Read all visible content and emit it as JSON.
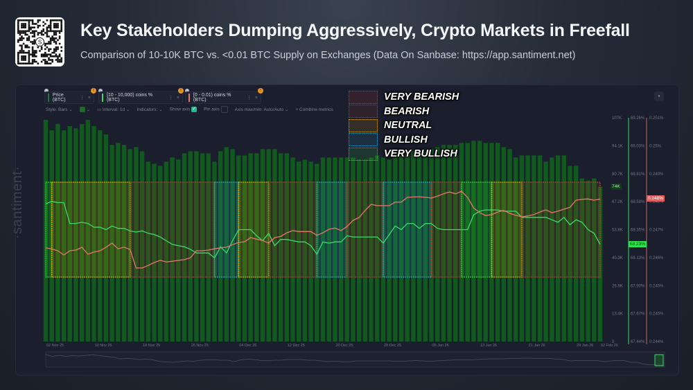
{
  "header": {
    "title": "Key Stakeholders Dumping Aggressively, Crypto Markets in Freefall",
    "subtitle": "Comparison of 10-10K BTC vs. <0.01 BTC Supply on Exchanges (Data On Sanbase: https://app.santiment.net)",
    "qr_logo_text": "S"
  },
  "toolbar": {
    "metrics": [
      {
        "label": "Price (BTC)",
        "color": "#1f7a2e"
      },
      {
        "label": "[10 - 10,000) coins % (BTC)",
        "color": "#3ddc6a"
      },
      {
        "label": "[0 - 0.01) coins % (BTC)",
        "color": "#e8776b"
      }
    ],
    "style": "Style: Bars",
    "interval": "Interval: 1d",
    "indicators": "Indicators:",
    "show_axis": "Show axis",
    "show_axis_checked": true,
    "pin_axis": "Pin axis",
    "pin_axis_checked": false,
    "axis_minmax": "Axis max/min: Auto/Auto",
    "combine": "+ Combine metrics",
    "kebab": "⋮",
    "close": "×"
  },
  "watermark": "·santiment·",
  "colors": {
    "price_bars": "#0f5a1c",
    "green_line": "#3ddc6a",
    "red_line": "#e8776b",
    "very_bearish": "#e02a2a",
    "bearish": "#b0412f",
    "neutral": "#e0a800",
    "bullish": "#2aa3cc",
    "very_bullish": "#2ed13a"
  },
  "chart_data": {
    "type": "bar",
    "title": "",
    "dates": [
      "2025-11-02",
      "2025-11-03",
      "2025-11-04",
      "2025-11-05",
      "2025-11-06",
      "2025-11-07",
      "2025-11-08",
      "2025-11-09",
      "2025-11-10",
      "2025-11-11",
      "2025-11-12",
      "2025-11-13",
      "2025-11-14",
      "2025-11-15",
      "2025-11-16",
      "2025-11-17",
      "2025-11-18",
      "2025-11-19",
      "2025-11-20",
      "2025-11-21",
      "2025-11-22",
      "2025-11-23",
      "2025-11-24",
      "2025-11-25",
      "2025-11-26",
      "2025-11-27",
      "2025-11-28",
      "2025-11-29",
      "2025-11-30",
      "2025-12-01",
      "2025-12-02",
      "2025-12-03",
      "2025-12-04",
      "2025-12-05",
      "2025-12-06",
      "2025-12-07",
      "2025-12-08",
      "2025-12-09",
      "2025-12-10",
      "2025-12-11",
      "2025-12-12",
      "2025-12-13",
      "2025-12-14",
      "2025-12-15",
      "2025-12-16",
      "2025-12-17",
      "2025-12-18",
      "2025-12-19",
      "2025-12-20",
      "2025-12-21",
      "2025-12-22",
      "2025-12-23",
      "2025-12-24",
      "2025-12-25",
      "2025-12-26",
      "2025-12-27",
      "2025-12-28",
      "2025-12-29",
      "2025-12-30",
      "2025-12-31",
      "2026-01-01",
      "2026-01-02",
      "2026-01-03",
      "2026-01-04",
      "2026-01-05",
      "2026-01-06",
      "2026-01-07",
      "2026-01-08",
      "2026-01-09",
      "2026-01-10",
      "2026-01-11",
      "2026-01-12",
      "2026-01-13",
      "2026-01-14",
      "2026-01-15",
      "2026-01-16",
      "2026-01-17",
      "2026-01-18",
      "2026-01-19",
      "2026-01-20",
      "2026-01-21",
      "2026-01-22",
      "2026-01-23",
      "2026-01-24",
      "2026-01-25",
      "2026-01-26",
      "2026-01-27",
      "2026-01-28",
      "2026-01-29",
      "2026-01-30",
      "2026-01-31",
      "2026-02-01",
      "2026-02-02"
    ],
    "x_tick_labels": [
      "02 Nov 25",
      "10 Nov 25",
      "18 Nov 25",
      "26 Nov 25",
      "04 Dec 25",
      "12 Dec 25",
      "20 Dec 25",
      "28 Dec 25",
      "05 Jan 26",
      "13 Jan 26",
      "21 Jan 26",
      "29 Jan 26",
      "02 Feb 26"
    ],
    "x_tick_dates": [
      "2025-11-02",
      "2025-11-10",
      "2025-11-18",
      "2025-11-26",
      "2025-12-04",
      "2025-12-12",
      "2025-12-20",
      "2025-12-28",
      "2026-01-05",
      "2026-01-13",
      "2026-01-21",
      "2026-01-29",
      "2026-02-02"
    ],
    "series": [
      {
        "name": "Price (BTC)",
        "type": "bar",
        "axis": "price",
        "unit": "K USD",
        "values": [
          106,
          101,
          104,
          101,
          103,
          102,
          104,
          106,
          103,
          101,
          99,
          94,
          95,
          94,
          92,
          93,
          91,
          86,
          85,
          84,
          86,
          88,
          87,
          90,
          91,
          91,
          90,
          90,
          86,
          91,
          93,
          92,
          89,
          89,
          90,
          90,
          92,
          92,
          92,
          90,
          90,
          88,
          86,
          87,
          86,
          85,
          88,
          88,
          88,
          88,
          88,
          88,
          87,
          87,
          88,
          89,
          88,
          87,
          88,
          89,
          90,
          91,
          91,
          91,
          92,
          93,
          94,
          94,
          94,
          95,
          95,
          96,
          96,
          95,
          95,
          95,
          93,
          92,
          88,
          89,
          89,
          89,
          89,
          86,
          88,
          89,
          89,
          84,
          84,
          78,
          77,
          78,
          74
        ]
      },
      {
        "name": "[10 - 10,000) coins % (BTC)",
        "type": "line",
        "axis": "green",
        "unit": "%",
        "values": [
          68.56,
          68.58,
          68.57,
          68.57,
          68.4,
          68.4,
          68.41,
          68.4,
          68.37,
          68.37,
          68.35,
          68.38,
          68.36,
          68.36,
          68.34,
          68.33,
          68.34,
          68.32,
          68.31,
          68.29,
          68.26,
          68.23,
          68.22,
          68.21,
          68.19,
          68.16,
          68.16,
          68.16,
          68.12,
          68.21,
          68.16,
          68.26,
          68.35,
          68.35,
          68.35,
          68.3,
          68.26,
          68.32,
          68.22,
          68.27,
          68.27,
          68.26,
          68.25,
          68.25,
          68.22,
          68.15,
          68.25,
          68.24,
          68.25,
          68.25,
          68.3,
          68.29,
          68.29,
          68.29,
          68.29,
          68.29,
          68.24,
          68.31,
          68.38,
          68.35,
          68.4,
          68.4,
          68.36,
          68.4,
          68.4,
          68.36,
          68.35,
          68.35,
          68.35,
          68.35,
          68.35,
          68.47,
          68.5,
          68.51,
          68.51,
          68.51,
          68.5,
          68.5,
          68.5,
          68.45,
          68.45,
          68.45,
          68.45,
          68.45,
          68.43,
          68.41,
          68.45,
          68.39,
          68.43,
          68.41,
          68.35,
          68.32,
          68.23
        ]
      },
      {
        "name": "[0 - 0.01) coins % (BTC)",
        "type": "line",
        "axis": "red",
        "unit": "%",
        "values": [
          0.24693,
          0.2469,
          0.24684,
          0.24671,
          0.24684,
          0.24686,
          0.24695,
          0.24673,
          0.2468,
          0.24684,
          0.24695,
          0.24708,
          0.2469,
          0.24695,
          0.24688,
          0.2463,
          0.2463,
          0.24638,
          0.24647,
          0.24654,
          0.24649,
          0.24651,
          0.24654,
          0.24656,
          0.24662,
          0.24684,
          0.24684,
          0.24686,
          0.2469,
          0.24693,
          0.24695,
          0.24703,
          0.2471,
          0.24712,
          0.24725,
          0.2472,
          0.24716,
          0.24708,
          0.24725,
          0.24729,
          0.2474,
          0.24747,
          0.24744,
          0.24744,
          0.24744,
          0.24732,
          0.2474,
          0.24751,
          0.24755,
          0.24747,
          0.2476,
          0.24779,
          0.24788,
          0.2481,
          0.24829,
          0.24825,
          0.24825,
          0.24825,
          0.24836,
          0.24836,
          0.24851,
          0.24852,
          0.24853,
          0.24851,
          0.24849,
          0.24855,
          0.24862,
          0.24868,
          0.24862,
          0.2487,
          0.24851,
          0.24818,
          0.24803,
          0.24794,
          0.24797,
          0.24805,
          0.2481,
          0.24801,
          0.24795,
          0.2479,
          0.24793,
          0.24797,
          0.24805,
          0.24812,
          0.24803,
          0.24808,
          0.24814,
          0.2482,
          0.24842,
          0.24845,
          0.24846,
          0.24842,
          0.24846
        ]
      }
    ],
    "axes": {
      "price": {
        "ylim": [
          0,
          107
        ],
        "tick_labels": [
          "107K",
          "94.1K",
          "80.7K",
          "67.2K",
          "53.8K",
          "40.3K",
          "26.9K",
          "13.4K",
          "0"
        ],
        "current_label": "74K"
      },
      "green": {
        "ylim": [
          67.44,
          69.26
        ],
        "tick_labels": [
          "69.26%",
          "69.03%",
          "68.81%",
          "68.58%",
          "68.35%",
          "68.13%",
          "67.90%",
          "67.67%",
          "67.44%"
        ],
        "current_label": "68.23%"
      },
      "red": {
        "ylim": [
          0.244,
          0.251
        ],
        "tick_labels": [
          "0.251%",
          "0.25%",
          "0.249%",
          "0.248%",
          "0.247%",
          "0.246%",
          "0.245%",
          "0.245%",
          "0.244%"
        ],
        "current_label": "0.248%"
      }
    },
    "sentiment_legend": [
      {
        "key": "very_bearish",
        "label": "VERY BEARISH"
      },
      {
        "key": "bearish",
        "label": "BEARISH"
      },
      {
        "key": "neutral",
        "label": "NEUTRAL"
      },
      {
        "key": "bullish",
        "label": "BULLISH"
      },
      {
        "key": "very_bullish",
        "label": "VERY BULLISH"
      }
    ],
    "sentiment_zones": [
      {
        "start": "2025-11-02",
        "end": "2025-11-03",
        "sentiment": "very_bullish"
      },
      {
        "start": "2025-11-03",
        "end": "2025-11-16",
        "sentiment": "neutral"
      },
      {
        "start": "2025-11-16",
        "end": "2025-11-30",
        "sentiment": "bearish"
      },
      {
        "start": "2025-11-30",
        "end": "2025-12-04",
        "sentiment": "bullish"
      },
      {
        "start": "2025-12-04",
        "end": "2025-12-09",
        "sentiment": "neutral"
      },
      {
        "start": "2025-12-09",
        "end": "2025-12-17",
        "sentiment": "bearish"
      },
      {
        "start": "2025-12-17",
        "end": "2025-12-22",
        "sentiment": "bullish"
      },
      {
        "start": "2025-12-22",
        "end": "2025-12-28",
        "sentiment": "bearish"
      },
      {
        "start": "2025-12-28",
        "end": "2026-01-05",
        "sentiment": "bullish"
      },
      {
        "start": "2026-01-05",
        "end": "2026-01-10",
        "sentiment": "bearish"
      },
      {
        "start": "2026-01-10",
        "end": "2026-01-15",
        "sentiment": "very_bullish"
      },
      {
        "start": "2026-01-15",
        "end": "2026-01-20",
        "sentiment": "neutral"
      },
      {
        "start": "2026-01-20",
        "end": "2026-02-02",
        "sentiment": "bearish"
      }
    ],
    "grid": false,
    "legend_position": "top-center"
  }
}
